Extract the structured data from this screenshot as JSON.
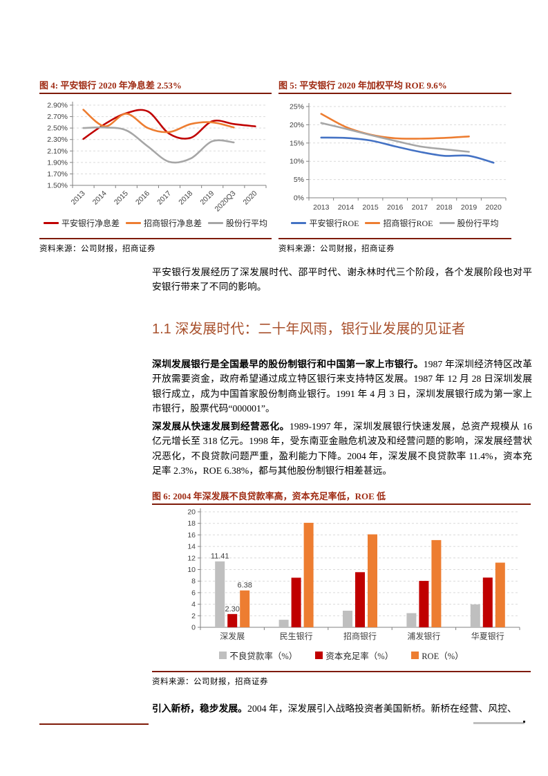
{
  "colors": {
    "title_red": "#9e2a12",
    "rule_red": "#7e1a08",
    "heading_color": "#a8502c",
    "series_red": "#C00000",
    "series_orange": "#ED7D31",
    "series_gray": "#A6A6A6",
    "series_blue": "#4472C4",
    "bar_gray": "#BFBFBF"
  },
  "figures": {
    "fig4": {
      "source": "资料来源：公司财报，招商证券"
    },
    "fig5": {
      "source": "资料来源：公司财报，招商证券"
    },
    "fig6": {
      "source": "资料来源：公司财报，招商证券"
    }
  },
  "content": {
    "intro": "平安银行发展经历了深发展时代、邵平时代、谢永林时代三个阶段，各个发展阶段也对平安银行带来了不同的影响。",
    "heading": "1.1 深发展时代：二十年风雨，银行业发展的见证者",
    "para1_bold": "深圳发展银行是全国最早的股份制银行和中国第一家上市银行。",
    "para1_text": "1987 年深圳经济特区改革开放需要资金，政府希望通过成立特区银行来支持特区发展。1987 年 12 月 28 日深圳发展银行成立，成为中国首家股份制商业银行。1991 年 4 月 3 日，深圳发展银行成为第一家上市银行，股票代码“000001”。",
    "para2_bold": "深发展从快速发展到经营恶化。",
    "para2_text": "1989-1997 年，深圳发展银行快速发展，总资产规模从 16 亿元增长至 318 亿元。1998 年，受东南亚金融危机波及和经营问题的影响，深发展经营状况恶化，不良贷款问题严重，盈利能力下降。2004 年，深发展不良贷款率 11.4%，资本充足率 2.3%，ROE 6.38%，都与其他股份制银行相差甚远。",
    "para3_bold": "引入新桥，稳步发展。",
    "para3_text": "2004 年，深发展引入战略投资者美国新桥。新桥在经营、风控、"
  },
  "chart_data": [
    {
      "id": "fig4",
      "type": "line",
      "title": "图 4: 平安银行 2020 年净息差 2.53%",
      "categories": [
        "2013",
        "2014",
        "2015",
        "2016",
        "2017",
        "2018",
        "2019",
        "2020Q3",
        "2020"
      ],
      "series": [
        {
          "name": "平安银行净息差",
          "color": "#C00000",
          "values": [
            2.31,
            2.57,
            2.76,
            2.79,
            2.4,
            2.33,
            2.62,
            2.57,
            2.53
          ]
        },
        {
          "name": "招商银行净息差",
          "color": "#ED7D31",
          "values": [
            2.82,
            2.53,
            2.75,
            2.5,
            2.43,
            2.57,
            2.6,
            2.51,
            null
          ]
        },
        {
          "name": "股份行平均",
          "color": "#A6A6A6",
          "values": [
            2.5,
            2.51,
            2.46,
            2.18,
            1.91,
            1.97,
            2.27,
            2.25,
            null
          ]
        }
      ],
      "ylim": [
        1.5,
        2.9
      ],
      "ytick_step": 0.2,
      "ytick_format": "percent2",
      "x_label_rotate": -45,
      "grid": "dashed",
      "legend_position": "bottom"
    },
    {
      "id": "fig5",
      "type": "line",
      "title": "图 5: 平安银行 2020 年加权平均 ROE 9.6%",
      "categories": [
        "2013",
        "2014",
        "2015",
        "2016",
        "2017",
        "2018",
        "2019",
        "2020"
      ],
      "series": [
        {
          "name": "平安银行ROE",
          "color": "#4472C4",
          "values": [
            16.5,
            16.4,
            15.7,
            14.1,
            12.6,
            11.5,
            11.5,
            9.6
          ]
        },
        {
          "name": "招商银行ROE",
          "color": "#ED7D31",
          "values": [
            23.0,
            19.4,
            17.3,
            16.3,
            16.2,
            16.4,
            16.8,
            null
          ]
        },
        {
          "name": "股份行平均",
          "color": "#A6A6A6",
          "values": [
            20.5,
            18.9,
            17.2,
            15.6,
            14.1,
            13.3,
            12.6,
            null
          ]
        }
      ],
      "ylim": [
        0,
        25
      ],
      "ytick_step": 5,
      "ytick_format": "percent0",
      "grid": "dashed",
      "legend_position": "bottom"
    },
    {
      "id": "fig6",
      "type": "bar",
      "title": "图 6: 2004 年深发展不良贷款率高，资本充足率低，ROE 低",
      "categories": [
        "深发展",
        "民生银行",
        "招商银行",
        "浦发银行",
        "华夏银行"
      ],
      "series": [
        {
          "name": "不良贷款率（%）",
          "color": "#BFBFBF",
          "values": [
            11.41,
            1.31,
            2.87,
            2.45,
            3.96
          ]
        },
        {
          "name": "资本充足率（%）",
          "color": "#C00000",
          "values": [
            2.3,
            8.59,
            9.55,
            8.03,
            8.61
          ]
        },
        {
          "name": "ROE（%）",
          "color": "#ED7D31",
          "values": [
            6.38,
            18.1,
            16.1,
            15.1,
            11.2
          ]
        }
      ],
      "ylim": [
        0,
        20
      ],
      "ytick_step": 2,
      "ytick_format": "plain",
      "grid": "dashed",
      "legend_position": "bottom",
      "data_labels": [
        {
          "series": 0,
          "index": 0,
          "text": "11.41"
        },
        {
          "series": 1,
          "index": 0,
          "text": "2.30"
        },
        {
          "series": 2,
          "index": 0,
          "text": "6.38"
        }
      ]
    }
  ]
}
